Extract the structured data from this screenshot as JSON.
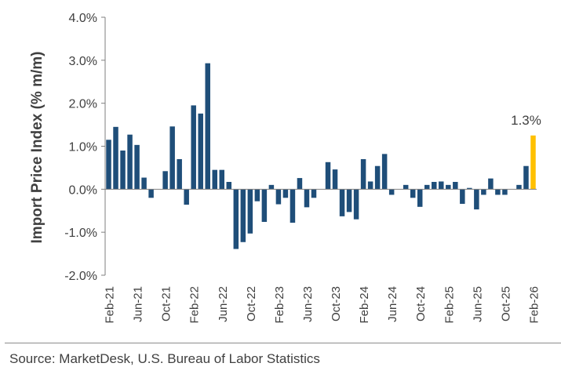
{
  "chart_data": {
    "type": "bar",
    "ylabel": "Import Price Index (% m/m)",
    "ylim": [
      -2.0,
      4.0
    ],
    "y_ticks": [
      -2.0,
      -1.0,
      0.0,
      1.0,
      2.0,
      3.0,
      4.0
    ],
    "y_tick_labels": [
      "-2.0%",
      "-1.0%",
      "0.0%",
      "1.0%",
      "2.0%",
      "3.0%",
      "4.0%"
    ],
    "grid": false,
    "x_tick_labels": [
      "Feb-21",
      "Jun-21",
      "Oct-21",
      "Feb-22",
      "Jun-22",
      "Oct-22",
      "Feb-23",
      "Jun-23",
      "Oct-23",
      "Feb-24",
      "Jun-24",
      "Oct-24",
      "Feb-25",
      "Jun-25",
      "Oct-25",
      "Feb-26"
    ],
    "tick_every": 4,
    "series_color": "#1f4e79",
    "highlight_color": "#ffc000",
    "highlight_label": "1.3%",
    "categories": [
      "Feb-21",
      "Mar-21",
      "Apr-21",
      "May-21",
      "Jun-21",
      "Jul-21",
      "Aug-21",
      "Sep-21",
      "Oct-21",
      "Nov-21",
      "Dec-21",
      "Jan-22",
      "Feb-22",
      "Mar-22",
      "Apr-22",
      "May-22",
      "Jun-22",
      "Jul-22",
      "Aug-22",
      "Sep-22",
      "Oct-22",
      "Nov-22",
      "Dec-22",
      "Jan-23",
      "Feb-23",
      "Mar-23",
      "Apr-23",
      "May-23",
      "Jun-23",
      "Jul-23",
      "Aug-23",
      "Sep-23",
      "Oct-23",
      "Nov-23",
      "Dec-23",
      "Jan-24",
      "Feb-24",
      "Mar-24",
      "Apr-24",
      "May-24",
      "Jun-24",
      "Jul-24",
      "Aug-24",
      "Sep-24",
      "Oct-24",
      "Nov-24",
      "Dec-24",
      "Jan-25",
      "Feb-25",
      "Mar-25",
      "Apr-25",
      "May-25",
      "Jun-25",
      "Jul-25",
      "Aug-25",
      "Sep-25",
      "Oct-25",
      "Nov-25",
      "Dec-25",
      "Jan-26",
      "Feb-26"
    ],
    "values": [
      1.15,
      1.45,
      0.9,
      1.27,
      1.03,
      0.27,
      -0.2,
      0.0,
      0.42,
      1.46,
      0.7,
      -0.36,
      1.95,
      1.76,
      2.93,
      0.45,
      0.45,
      0.17,
      -1.39,
      -1.23,
      -1.03,
      -0.28,
      -0.76,
      0.1,
      -0.35,
      -0.2,
      -0.78,
      0.26,
      -0.42,
      -0.2,
      0.0,
      0.63,
      0.46,
      -0.63,
      -0.53,
      -0.7,
      0.7,
      0.18,
      0.54,
      0.82,
      -0.13,
      0.0,
      0.1,
      -0.2,
      -0.41,
      0.1,
      0.17,
      0.18,
      0.1,
      0.17,
      -0.34,
      0.03,
      -0.47,
      -0.13,
      0.25,
      -0.13,
      -0.13,
      0.0,
      0.1,
      0.54,
      1.25
    ]
  },
  "footer": {
    "source": "Source: MarketDesk, U.S. Bureau of Labor Statistics"
  }
}
